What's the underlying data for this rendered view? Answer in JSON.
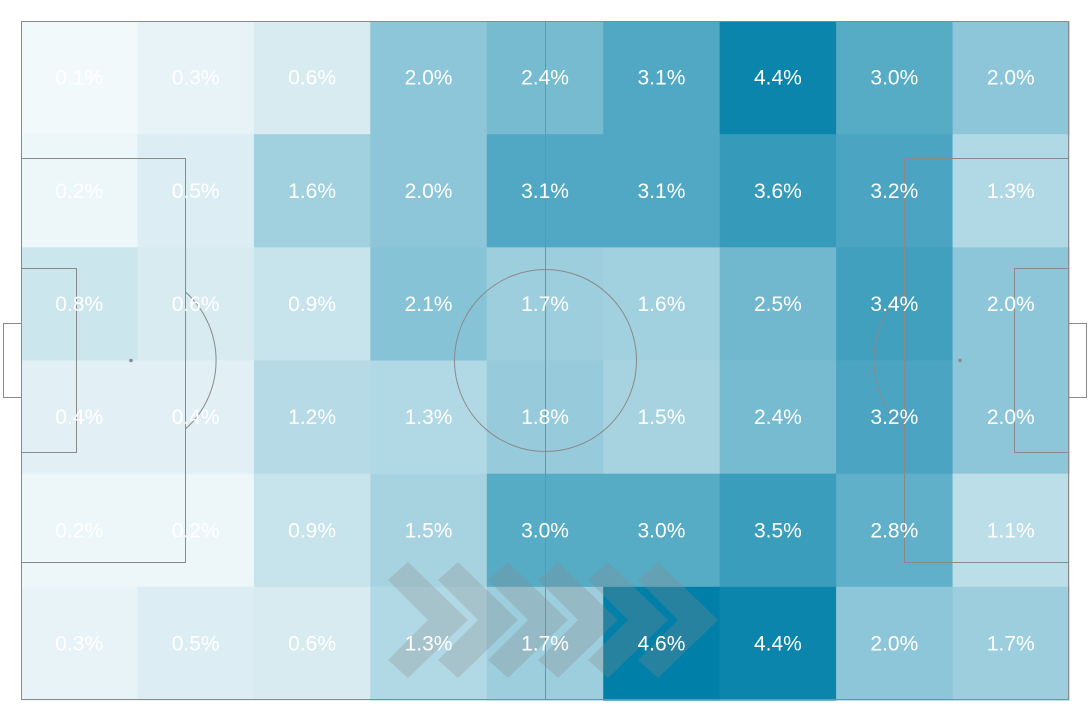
{
  "chart_data": {
    "type": "heatmap",
    "title": "",
    "rows": 6,
    "cols": 9,
    "unit": "%",
    "values": [
      [
        0.1,
        0.3,
        0.6,
        2.0,
        2.4,
        3.1,
        4.4,
        3.0,
        2.0
      ],
      [
        0.2,
        0.5,
        1.6,
        2.0,
        3.1,
        3.1,
        3.6,
        3.2,
        1.3
      ],
      [
        0.8,
        0.6,
        0.9,
        2.1,
        1.7,
        1.6,
        2.5,
        3.4,
        2.0
      ],
      [
        0.4,
        0.4,
        1.2,
        1.3,
        1.8,
        1.5,
        2.4,
        3.2,
        2.0
      ],
      [
        0.2,
        0.2,
        0.9,
        1.5,
        3.0,
        3.0,
        3.5,
        2.8,
        1.1
      ],
      [
        0.3,
        0.5,
        0.6,
        1.3,
        1.7,
        4.6,
        4.4,
        2.0,
        1.7
      ]
    ],
    "labels": [
      [
        "0.1%",
        "0.3%",
        "0.6%",
        "2.0%",
        "2.4%",
        "3.1%",
        "4.4%",
        "3.0%",
        "2.0%"
      ],
      [
        "0.2%",
        "0.5%",
        "1.6%",
        "2.0%",
        "3.1%",
        "3.1%",
        "3.6%",
        "3.2%",
        "1.3%"
      ],
      [
        "0.8%",
        "0.6%",
        "0.9%",
        "2.1%",
        "1.7%",
        "1.6%",
        "2.5%",
        "3.4%",
        "2.0%"
      ],
      [
        "0.4%",
        "0.4%",
        "1.2%",
        "1.3%",
        "1.8%",
        "1.5%",
        "2.4%",
        "3.2%",
        "2.0%"
      ],
      [
        "0.2%",
        "0.2%",
        "0.9%",
        "1.5%",
        "3.0%",
        "3.0%",
        "3.5%",
        "2.8%",
        "1.1%"
      ],
      [
        "0.3%",
        "0.5%",
        "0.6%",
        "1.3%",
        "1.7%",
        "4.6%",
        "4.4%",
        "2.0%",
        "1.7%"
      ]
    ],
    "color_scale": {
      "low": "#ffffff",
      "high": "#0080a8"
    },
    "direction_of_play": "left-to-right",
    "background": "football-pitch"
  },
  "colors": {
    "pitch_line": "#8a8a8a",
    "label": "#ffffff",
    "arrow": "#8a8a8a"
  }
}
